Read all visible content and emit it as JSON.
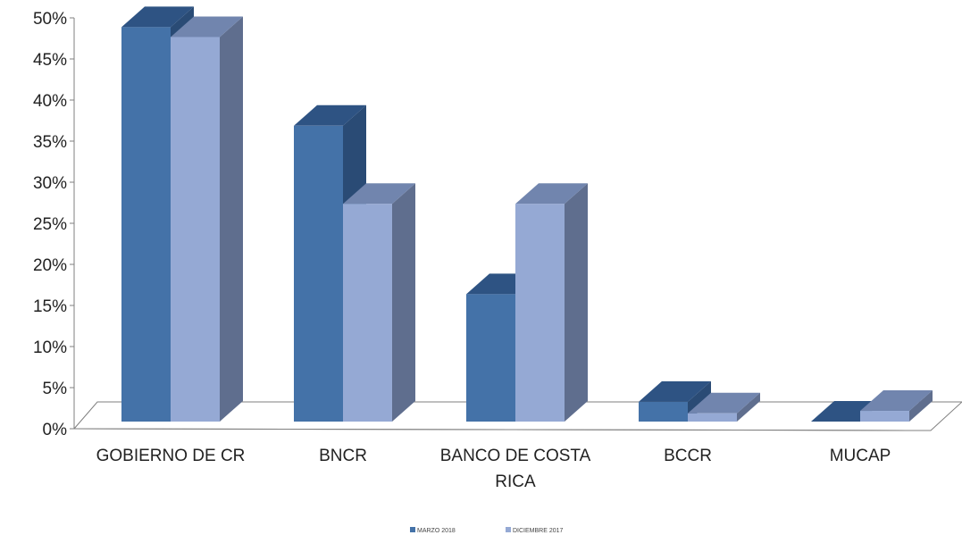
{
  "chart_data": {
    "type": "bar",
    "title": "",
    "xlabel": "",
    "ylabel": "",
    "ylim": [
      0,
      0.5
    ],
    "y_ticks": [
      "0%",
      "5%",
      "10%",
      "15%",
      "20%",
      "25%",
      "30%",
      "35%",
      "40%",
      "45%",
      "50%"
    ],
    "categories": [
      "GOBIERNO DE CR",
      "BNCR",
      "BANCO DE COSTA RICA",
      "BCCR",
      "MUCAP"
    ],
    "category_lines": [
      [
        "GOBIERNO DE CR"
      ],
      [
        "BNCR"
      ],
      [
        "BANCO DE COSTA",
        "RICA"
      ],
      [
        "BCCR"
      ],
      [
        "MUCAP"
      ]
    ],
    "series": [
      {
        "name": "MARZO 2018",
        "values": [
          0.48,
          0.36,
          0.155,
          0.024,
          0.0
        ],
        "color": "#4472A8",
        "top_color": "#2E5383",
        "side_color": "#2A4B75"
      },
      {
        "name": "DICIEMBRE 2017",
        "values": [
          0.468,
          0.265,
          0.265,
          0.01,
          0.013
        ],
        "color": "#95A9D4",
        "top_color": "#7185AE",
        "side_color": "#5F6E8E"
      }
    ],
    "legend_position": "bottom",
    "grid": false,
    "style": "3d-clustered-column"
  }
}
